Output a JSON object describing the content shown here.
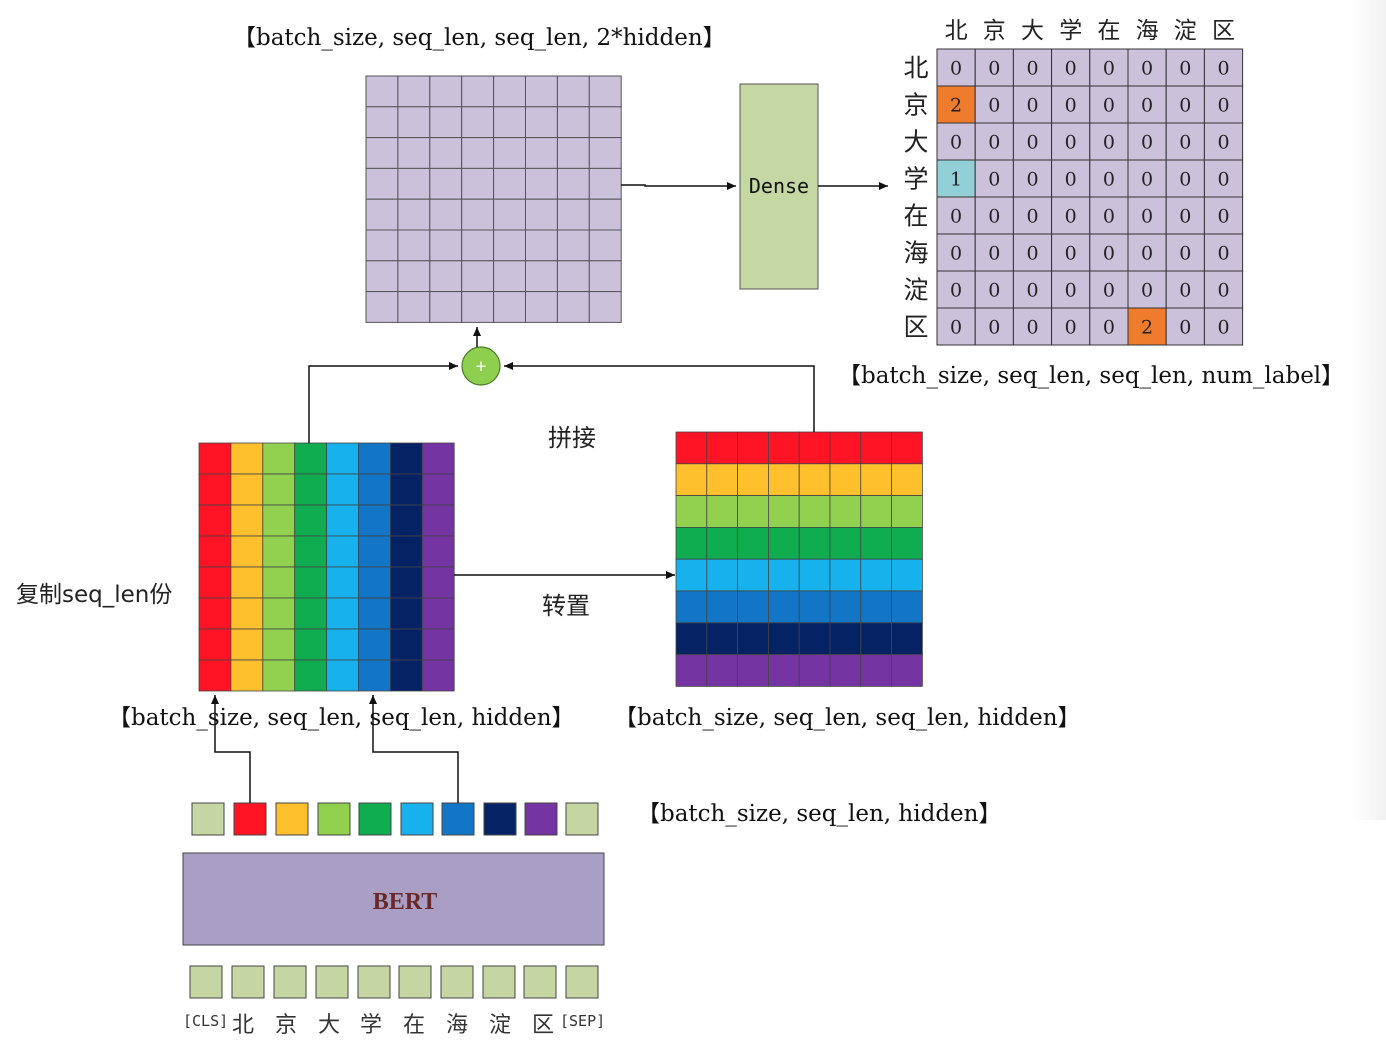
{
  "diagram": {
    "labels": {
      "concat_shape": "【batch_size, seq_len, seq_len, 2*hidden】",
      "output_shape": "【batch_size, seq_len, seq_len, num_label】",
      "left_shape": "【batch_size, seq_len, seq_len, hidden】",
      "right_shape": "【batch_size, seq_len, seq_len, hidden】",
      "bert_shape": "【batch_size, seq_len, hidden】",
      "concat_op": "拼接",
      "transpose_op": "转置",
      "copy_op": "复制seq_len份",
      "dense": "Dense",
      "bert": "BERT",
      "plus": "+"
    },
    "tokens": [
      "[CLS]",
      "北",
      "京",
      "大",
      "学",
      "在",
      "海",
      "淀",
      "区",
      "[SEP]"
    ],
    "matrix_axis": [
      "北",
      "京",
      "大",
      "学",
      "在",
      "海",
      "淀",
      "区"
    ],
    "output_matrix": [
      [
        "0",
        "0",
        "0",
        "0",
        "0",
        "0",
        "0",
        "0"
      ],
      [
        "2",
        "0",
        "0",
        "0",
        "0",
        "0",
        "0",
        "0"
      ],
      [
        "0",
        "0",
        "0",
        "0",
        "0",
        "0",
        "0",
        "0"
      ],
      [
        "1",
        "0",
        "0",
        "0",
        "0",
        "0",
        "0",
        "0"
      ],
      [
        "0",
        "0",
        "0",
        "0",
        "0",
        "0",
        "0",
        "0"
      ],
      [
        "0",
        "0",
        "0",
        "0",
        "0",
        "0",
        "0",
        "0"
      ],
      [
        "0",
        "0",
        "0",
        "0",
        "0",
        "0",
        "0",
        "0"
      ],
      [
        "0",
        "0",
        "0",
        "0",
        "0",
        "2",
        "0",
        "0"
      ]
    ],
    "colors": {
      "palette": [
        "#ff1426",
        "#ffc02e",
        "#92d050",
        "#10ad50",
        "#17b1ee",
        "#1275c5",
        "#052364",
        "#7434a2"
      ],
      "token_green": "#c6d6a3",
      "grid_lavender": "#ccc1db",
      "dense_green": "#c5d7a2",
      "bert_purple": "#a99ec3",
      "bert_text": "#6b2828",
      "plus_green": "#8fcf4f",
      "highlight_orange": "#ef7b2d",
      "highlight_cyan": "#93cfd6"
    }
  }
}
